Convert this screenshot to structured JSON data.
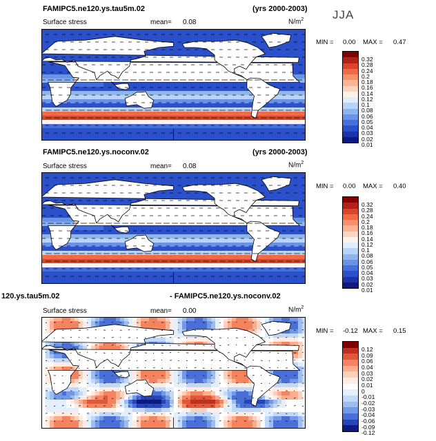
{
  "season": "JJA",
  "panels": [
    {
      "case_title": "FAMIPC5.ne120.ys.tau5m.02",
      "years": "(yrs 2000-2003)",
      "variable": "Surface stress",
      "mean_label": "mean=",
      "mean_value": "0.08",
      "units": "N/m",
      "units_exp": "2",
      "min_label": "MIN =",
      "min_value": "0.00",
      "max_label": "MAX =",
      "max_value": "0.47",
      "levels": [
        "0.32",
        "0.28",
        "0.24",
        "0.2",
        "0.18",
        "0.16",
        "0.14",
        "0.12",
        "0.1",
        "0.08",
        "0.06",
        "0.05",
        "0.04",
        "0.03",
        "0.02",
        "0.01"
      ],
      "colors": [
        "#800000",
        "#b2221a",
        "#d8452a",
        "#ef6a45",
        "#f7906b",
        "#fbb595",
        "#fcd5c0",
        "#fff2e8",
        "#dfeefd",
        "#b8d3f7",
        "#8fb5ee",
        "#6a92e6",
        "#4570dc",
        "#2a50cc",
        "#1a32aa",
        "#0d1a80"
      ]
    },
    {
      "case_title": "FAMIPC5.ne120.ys.noconv.02",
      "years": "(yrs 2000-2003)",
      "variable": "Surface stress",
      "mean_label": "mean=",
      "mean_value": "0.08",
      "units": "N/m",
      "units_exp": "2",
      "min_label": "MIN =",
      "min_value": "0.00",
      "max_label": "MAX =",
      "max_value": "0.40",
      "levels": [
        "0.32",
        "0.28",
        "0.24",
        "0.2",
        "0.18",
        "0.16",
        "0.14",
        "0.12",
        "0.1",
        "0.08",
        "0.06",
        "0.05",
        "0.04",
        "0.03",
        "0.02",
        "0.01"
      ],
      "colors": [
        "#800000",
        "#b2221a",
        "#d8452a",
        "#ef6a45",
        "#f7906b",
        "#fbb595",
        "#fcd5c0",
        "#fff2e8",
        "#dfeefd",
        "#b8d3f7",
        "#8fb5ee",
        "#6a92e6",
        "#4570dc",
        "#2a50cc",
        "#1a32aa",
        "#0d1a80"
      ]
    },
    {
      "case_title_left": "120.ys.tau5m.02",
      "case_title_right": "- FAMIPC5.ne120.ys.noconv.02",
      "variable": "Surface stress",
      "mean_label": "mean=",
      "mean_value": "0.00",
      "units": "N/m",
      "units_exp": "2",
      "min_label": "MIN =",
      "min_value": "-0.12",
      "max_label": "MAX =",
      "max_value": "0.15",
      "levels": [
        "0.12",
        "0.09",
        "0.06",
        "0.04",
        "0.03",
        "0.02",
        "0.01",
        "0",
        "-0.01",
        "-0.02",
        "-0.03",
        "-0.04",
        "-0.06",
        "-0.09",
        "-0.12"
      ],
      "colors": [
        "#800000",
        "#c0301f",
        "#e0573a",
        "#f3845f",
        "#fbad8d",
        "#fdd0bb",
        "#ffece2",
        "#ffffff",
        "#e3effd",
        "#c2d8f8",
        "#9cbdf0",
        "#7399e6",
        "#4a70d8",
        "#2545b8",
        "#0d1a80"
      ]
    }
  ]
}
